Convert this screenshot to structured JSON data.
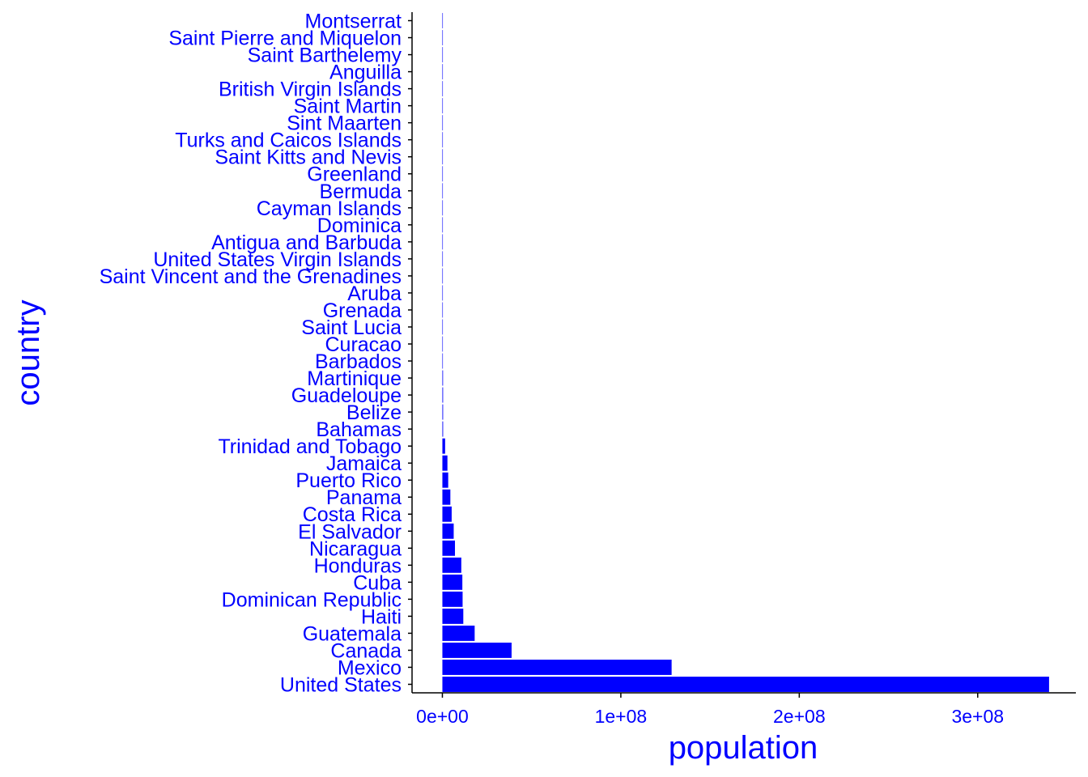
{
  "chart_data": {
    "type": "bar",
    "orientation": "horizontal",
    "xlabel": "population",
    "ylabel": "country",
    "text_color": "#0000ff",
    "bar_color": "#0000ff",
    "axis_color": "#000000",
    "grid": false,
    "legend": "none",
    "xlim": [
      -17000000,
      355000000
    ],
    "x_ticks": [
      0,
      100000000,
      200000000,
      300000000
    ],
    "x_tick_labels": [
      "0e+00",
      "1e+08",
      "2e+08",
      "3e+08"
    ],
    "categories": [
      "Montserrat",
      "Saint Pierre and Miquelon",
      "Saint Barthelemy",
      "Anguilla",
      "British Virgin Islands",
      "Saint Martin",
      "Sint Maarten",
      "Turks and Caicos Islands",
      "Saint Kitts and Nevis",
      "Greenland",
      "Bermuda",
      "Cayman Islands",
      "Dominica",
      "Antigua and Barbuda",
      "United States Virgin Islands",
      "Saint Vincent and the Grenadines",
      "Aruba",
      "Grenada",
      "Saint Lucia",
      "Curacao",
      "Barbados",
      "Martinique",
      "Guadeloupe",
      "Belize",
      "Bahamas",
      "Trinidad and Tobago",
      "Jamaica",
      "Puerto Rico",
      "Panama",
      "Costa Rica",
      "El Salvador",
      "Nicaragua",
      "Honduras",
      "Cuba",
      "Dominican Republic",
      "Haiti",
      "Guatemala",
      "Canada",
      "Mexico",
      "United States"
    ],
    "values": [
      4400,
      5800,
      10000,
      15900,
      31500,
      32000,
      41000,
      46000,
      47700,
      56500,
      64000,
      69000,
      73000,
      94000,
      99000,
      104000,
      106000,
      126000,
      180000,
      191000,
      282000,
      368000,
      395000,
      405000,
      410000,
      1530000,
      2830000,
      3260000,
      4470000,
      5200000,
      6340000,
      7050000,
      10600000,
      11190000,
      11330000,
      11720000,
      18090000,
      38780000,
      128460000,
      339990000
    ]
  }
}
